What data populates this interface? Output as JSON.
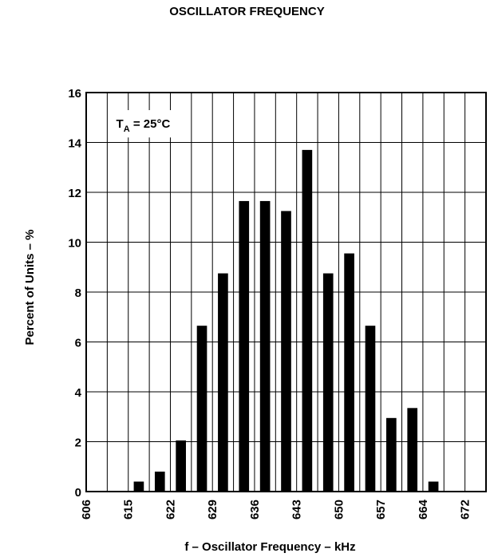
{
  "chart_data": {
    "type": "bar",
    "title": "OSCILLATOR FREQUENCY",
    "xlabel": "f – Oscillator Frequency – kHz",
    "ylabel": "Percent of Units  – %",
    "annotation": {
      "main": "T",
      "sub": "A",
      "rest": " = 25°C"
    },
    "x_ticks": [
      "606",
      "615",
      "622",
      "629",
      "636",
      "643",
      "650",
      "657",
      "664",
      "672"
    ],
    "y_ticks": [
      0,
      2,
      4,
      6,
      8,
      10,
      12,
      14,
      16
    ],
    "ylim": [
      0,
      16
    ],
    "bins": [
      {
        "value": 0
      },
      {
        "value": 0
      },
      {
        "value": 0.4
      },
      {
        "value": 0.8
      },
      {
        "value": 2.05
      },
      {
        "value": 6.65
      },
      {
        "value": 8.75
      },
      {
        "value": 11.65
      },
      {
        "value": 11.65
      },
      {
        "value": 11.25
      },
      {
        "value": 13.7
      },
      {
        "value": 8.75
      },
      {
        "value": 9.55
      },
      {
        "value": 6.65
      },
      {
        "value": 2.95
      },
      {
        "value": 3.35
      },
      {
        "value": 0.4
      },
      {
        "value": 0
      },
      {
        "value": 0
      }
    ],
    "grid": true,
    "bar_color": "#000000"
  }
}
